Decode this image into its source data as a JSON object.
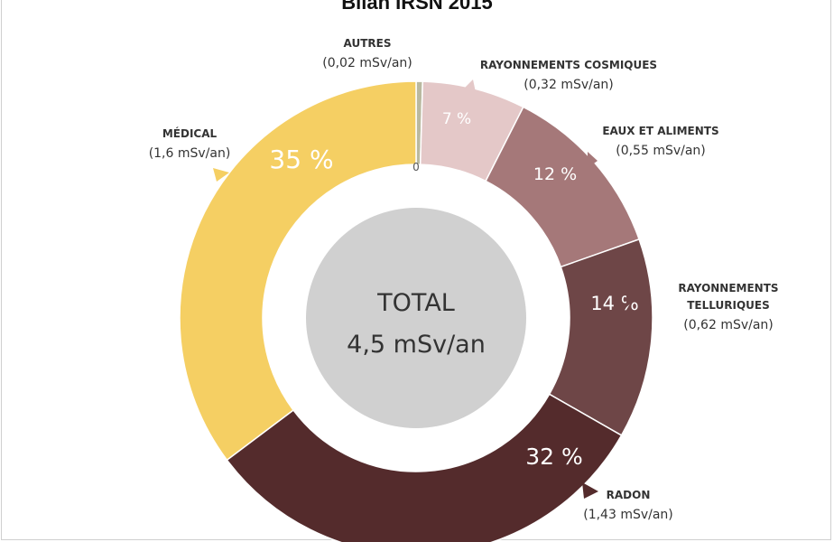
{
  "chart_data": {
    "type": "pie",
    "title": "Bilan IRSN 2015",
    "center": {
      "line1": "TOTAL",
      "line2": "4,5 mSv/an"
    },
    "zero_tick": "0",
    "segments": [
      {
        "name": "AUTRES",
        "value": 0.02,
        "value_label": "(0,02 mSv/an)",
        "percent_label": "",
        "color": "#b9b9a0"
      },
      {
        "name": "RAYONNEMENTS COSMIQUES",
        "value": 0.32,
        "value_label": "(0,32 mSv/an)",
        "percent_label": "7 %",
        "color": "#e4c8c8"
      },
      {
        "name": "EAUX ET ALIMENTS",
        "value": 0.55,
        "value_label": "(0,55 mSv/an)",
        "percent_label": "12 %",
        "color": "#a57879"
      },
      {
        "name": "RAYONNEMENTS TELLURIQUES",
        "value": 0.62,
        "value_label": "(0,62 mSv/an)",
        "percent_label": "14 %",
        "color": "#6e4647"
      },
      {
        "name": "RADON",
        "value": 1.43,
        "value_label": "(1,43 mSv/an)",
        "percent_label": "32 %",
        "color": "#542b2c"
      },
      {
        "name": "MÉDICAL",
        "value": 1.6,
        "value_label": "(1,6 mSv/an)",
        "percent_label": "35 %",
        "color": "#f5cf63"
      }
    ],
    "colors": {
      "center_disc": "#d0d0d0",
      "text_dark": "#333333",
      "text_light": "#ffffff"
    }
  }
}
